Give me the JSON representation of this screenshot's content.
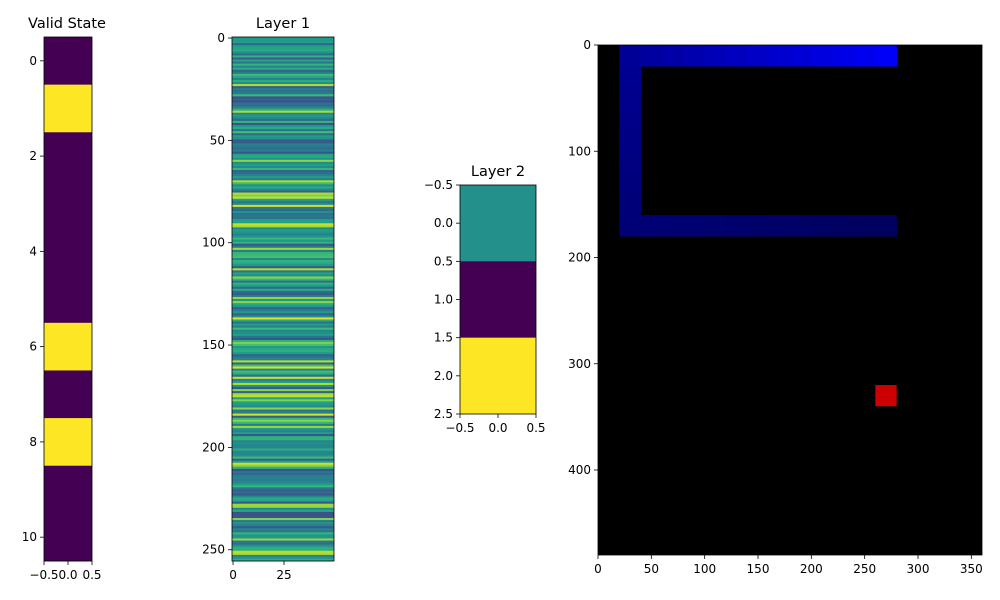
{
  "chart_data": [
    {
      "type": "heatmap",
      "title": "Valid State",
      "colormap": "viridis",
      "values": [
        0,
        1,
        0,
        0,
        0,
        0,
        1,
        0,
        1,
        0,
        0
      ],
      "xlim": [
        -0.5,
        0.5
      ],
      "ylim": [
        10.5,
        -0.5
      ],
      "xticks": [
        -0.5,
        0.0,
        0.5
      ],
      "xtick_labels": [
        "−0.5",
        "0.0",
        "0.5"
      ],
      "yticks": [
        0,
        2,
        4,
        6,
        8,
        10
      ],
      "ytick_labels": [
        "0",
        "2",
        "4",
        "6",
        "8",
        "10"
      ],
      "grid": false
    },
    {
      "type": "heatmap",
      "title": "Layer 1",
      "colormap": "viridis",
      "n_rows": 256,
      "n_cols": 50,
      "value_range": [
        0,
        1
      ],
      "xticks": [
        0,
        25
      ],
      "xtick_labels": [
        "0",
        "25"
      ],
      "yticks": [
        0,
        50,
        100,
        150,
        200,
        250
      ],
      "ytick_labels": [
        "0",
        "50",
        "100",
        "150",
        "200",
        "250"
      ],
      "grid": false
    },
    {
      "type": "heatmap",
      "title": "Layer 2",
      "colormap": "viridis",
      "values": [
        0.5,
        0,
        1
      ],
      "xlim": [
        -0.5,
        0.5
      ],
      "ylim": [
        2.5,
        -0.5
      ],
      "xticks": [
        -0.5,
        0.0,
        0.5
      ],
      "xtick_labels": [
        "−0.5",
        "0.0",
        "0.5"
      ],
      "yticks": [
        -0.5,
        0.0,
        0.5,
        1.0,
        1.5,
        2.0,
        2.5
      ],
      "ytick_labels": [
        "−0.5",
        "0.0",
        "0.5",
        "1.0",
        "1.5",
        "2.0",
        "2.5"
      ],
      "grid": false
    },
    {
      "type": "image",
      "title": "",
      "background": "#000000",
      "xlim": [
        0,
        360
      ],
      "ylim": [
        480,
        0
      ],
      "xticks": [
        0,
        50,
        100,
        150,
        200,
        250,
        300,
        350
      ],
      "xtick_labels": [
        "0",
        "50",
        "100",
        "150",
        "200",
        "250",
        "300",
        "350"
      ],
      "yticks": [
        0,
        100,
        200,
        300,
        400
      ],
      "ytick_labels": [
        "0",
        "100",
        "200",
        "300",
        "400"
      ],
      "snake_segments": [
        {
          "x": 260,
          "y": 160,
          "color": "#00005e"
        },
        {
          "x": 240,
          "y": 160,
          "color": "#000060"
        },
        {
          "x": 220,
          "y": 160,
          "color": "#000062"
        },
        {
          "x": 200,
          "y": 160,
          "color": "#000064"
        },
        {
          "x": 180,
          "y": 160,
          "color": "#000066"
        },
        {
          "x": 160,
          "y": 160,
          "color": "#000068"
        },
        {
          "x": 140,
          "y": 160,
          "color": "#00006a"
        },
        {
          "x": 120,
          "y": 160,
          "color": "#00006c"
        },
        {
          "x": 100,
          "y": 160,
          "color": "#00006e"
        },
        {
          "x": 80,
          "y": 160,
          "color": "#000070"
        },
        {
          "x": 60,
          "y": 160,
          "color": "#000072"
        },
        {
          "x": 40,
          "y": 160,
          "color": "#000074"
        },
        {
          "x": 20,
          "y": 160,
          "color": "#000076"
        },
        {
          "x": 20,
          "y": 140,
          "color": "#000078"
        },
        {
          "x": 20,
          "y": 120,
          "color": "#00007c"
        },
        {
          "x": 20,
          "y": 100,
          "color": "#000080"
        },
        {
          "x": 20,
          "y": 80,
          "color": "#000084"
        },
        {
          "x": 20,
          "y": 60,
          "color": "#000088"
        },
        {
          "x": 20,
          "y": 40,
          "color": "#00008c"
        },
        {
          "x": 20,
          "y": 20,
          "color": "#000090"
        },
        {
          "x": 20,
          "y": 0,
          "color": "#000096"
        },
        {
          "x": 40,
          "y": 0,
          "color": "#00009e"
        },
        {
          "x": 60,
          "y": 0,
          "color": "#0000a6"
        },
        {
          "x": 80,
          "y": 0,
          "color": "#0000ae"
        },
        {
          "x": 100,
          "y": 0,
          "color": "#0000b6"
        },
        {
          "x": 120,
          "y": 0,
          "color": "#0000be"
        },
        {
          "x": 140,
          "y": 0,
          "color": "#0000c6"
        },
        {
          "x": 160,
          "y": 0,
          "color": "#0000ce"
        },
        {
          "x": 180,
          "y": 0,
          "color": "#0000d6"
        },
        {
          "x": 200,
          "y": 0,
          "color": "#0000de"
        },
        {
          "x": 220,
          "y": 0,
          "color": "#0000e6"
        },
        {
          "x": 240,
          "y": 0,
          "color": "#0000ee"
        },
        {
          "x": 260,
          "y": 0,
          "color": "#0000f8"
        }
      ],
      "cell_size": 20,
      "food": {
        "x": 260,
        "y": 320,
        "color": "#cc0000"
      }
    }
  ]
}
